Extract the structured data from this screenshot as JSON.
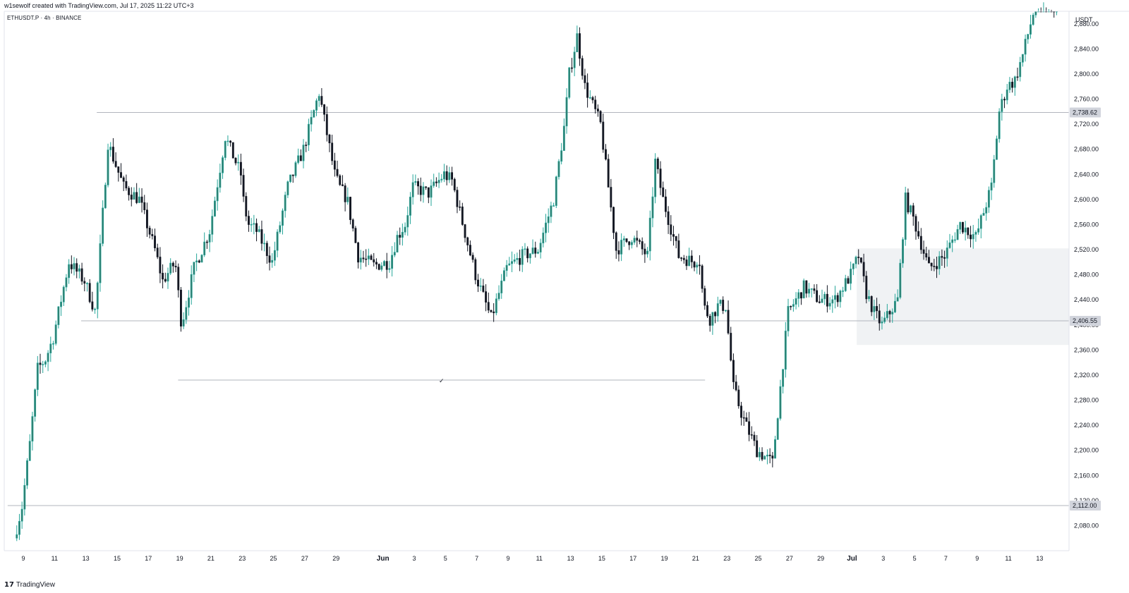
{
  "header": {
    "created_line": "w1sewolf created with TradingView.com, Jul 17, 2025 11:22 UTC+3",
    "symbol_line": "ETHUSDT.P · 4h · BINANCE"
  },
  "footer": {
    "brand_logo": "17",
    "brand_name": "TradingView"
  },
  "colors": {
    "up": "#26a69a",
    "up_body": "#2e7d6f",
    "down": "#131722",
    "line": "#b2b5be",
    "zone": "#e6e9ec",
    "label_bg": "#d1d4dc"
  },
  "chart_data": {
    "type": "candlestick",
    "currency_label": "USDT",
    "ylim": [
      2040,
      2900
    ],
    "y_ticks": [
      2080,
      2120,
      2160,
      2200,
      2240,
      2280,
      2320,
      2360,
      2400,
      2440,
      2480,
      2520,
      2560,
      2600,
      2640,
      2680,
      2720,
      2760,
      2800,
      2840,
      2880
    ],
    "y_tick_labels": [
      "2,080.00",
      "2,120.00",
      "2,160.00",
      "2,200.00",
      "2,240.00",
      "2,280.00",
      "2,320.00",
      "2,360.00",
      "2,400.00",
      "2,440.00",
      "2,480.00",
      "2,520.00",
      "2,560.00",
      "2,600.00",
      "2,640.00",
      "2,680.00",
      "2,720.00",
      "2,760.00",
      "2,800.00",
      "2,840.00",
      "2,880.00"
    ],
    "x_labels": [
      "9",
      "11",
      "13",
      "15",
      "17",
      "19",
      "21",
      "23",
      "25",
      "27",
      "29",
      "Jun",
      "3",
      "5",
      "7",
      "9",
      "11",
      "13",
      "15",
      "17",
      "19",
      "21",
      "23",
      "25",
      "27",
      "29",
      "Jul",
      "3",
      "5",
      "7",
      "9",
      "11",
      "13"
    ],
    "month_labels": [
      "Jun",
      "Jul"
    ],
    "x_label_days": [
      0,
      2,
      4,
      6,
      8,
      10,
      12,
      14,
      16,
      18,
      20,
      23,
      25,
      27,
      29,
      31,
      33,
      35,
      37,
      39,
      41,
      43,
      45,
      47,
      49,
      51,
      53,
      55,
      57,
      59,
      61,
      63,
      65
    ],
    "price_labels": [
      {
        "text": "2,738.62",
        "value": 2738.62
      },
      {
        "text": "2,406.55",
        "value": 2406.55
      },
      {
        "text": "2,112.00",
        "value": 2112.0
      }
    ],
    "horizontal_levels": [
      {
        "value": 2738.62,
        "from_day": 4.7
      },
      {
        "value": 2406.55,
        "from_day": 3.7
      },
      {
        "value": 2112.0,
        "from_day": -1
      }
    ],
    "swept_level": {
      "value": 2312,
      "from_day": 9.9,
      "to_day": 43.6,
      "mark": "✓"
    },
    "zone": {
      "from_day": 53.3,
      "top": 2522,
      "bottom": 2368
    },
    "path_days": [
      -0.5,
      0.0,
      0.5,
      1.0,
      1.5,
      2.0,
      3.0,
      4.0,
      4.7,
      5.5,
      6.5,
      7.5,
      8.5,
      9.0,
      9.8,
      10.2,
      11.0,
      12.0,
      13.0,
      14.0,
      14.2,
      14.5,
      15.0,
      16.0,
      17.0,
      18.0,
      19.0,
      20.0,
      20.3,
      20.8,
      21.5,
      22.5,
      23.5,
      24.0,
      24.5,
      25.0,
      26.0,
      27.0,
      27.5,
      28.0,
      29.0,
      30.0,
      31.0,
      32.0,
      33.0,
      33.5,
      34.0,
      34.7,
      35.0,
      35.5,
      36.0,
      37.0,
      38.0,
      39.0,
      40.0,
      40.5,
      41.0,
      42.0,
      43.0,
      43.3,
      43.6,
      44.0,
      44.5,
      45.0,
      45.5,
      46.0,
      46.3,
      47.0,
      48.0,
      49.0,
      50.0,
      51.0,
      52.0,
      53.0,
      53.5,
      54.0,
      54.5,
      55.0,
      56.0,
      56.5,
      57.0,
      58.0,
      59.0,
      60.0,
      61.0,
      62.0,
      62.5,
      63.0,
      63.5,
      64.0,
      64.8,
      65.5,
      66.0
    ],
    "path_values": [
      2060,
      2110,
      2210,
      2330,
      2345,
      2380,
      2500,
      2470,
      2420,
      2690,
      2620,
      2600,
      2520,
      2470,
      2500,
      2400,
      2490,
      2550,
      2700,
      2640,
      2590,
      2560,
      2550,
      2500,
      2620,
      2680,
      2770,
      2640,
      2620,
      2600,
      2510,
      2495,
      2500,
      2540,
      2560,
      2620,
      2610,
      2640,
      2630,
      2580,
      2480,
      2410,
      2490,
      2510,
      2520,
      2560,
      2600,
      2720,
      2800,
      2860,
      2780,
      2720,
      2520,
      2540,
      2510,
      2660,
      2600,
      2510,
      2500,
      2510,
      2430,
      2410,
      2430,
      2430,
      2300,
      2260,
      2240,
      2200,
      2180,
      2420,
      2460,
      2440,
      2440,
      2480,
      2510,
      2450,
      2420,
      2400,
      2440,
      2600,
      2570,
      2490,
      2510,
      2560,
      2540,
      2620,
      2740,
      2780,
      2790,
      2830,
      2910,
      2915,
      2910
    ],
    "candle_seed": 7
  }
}
